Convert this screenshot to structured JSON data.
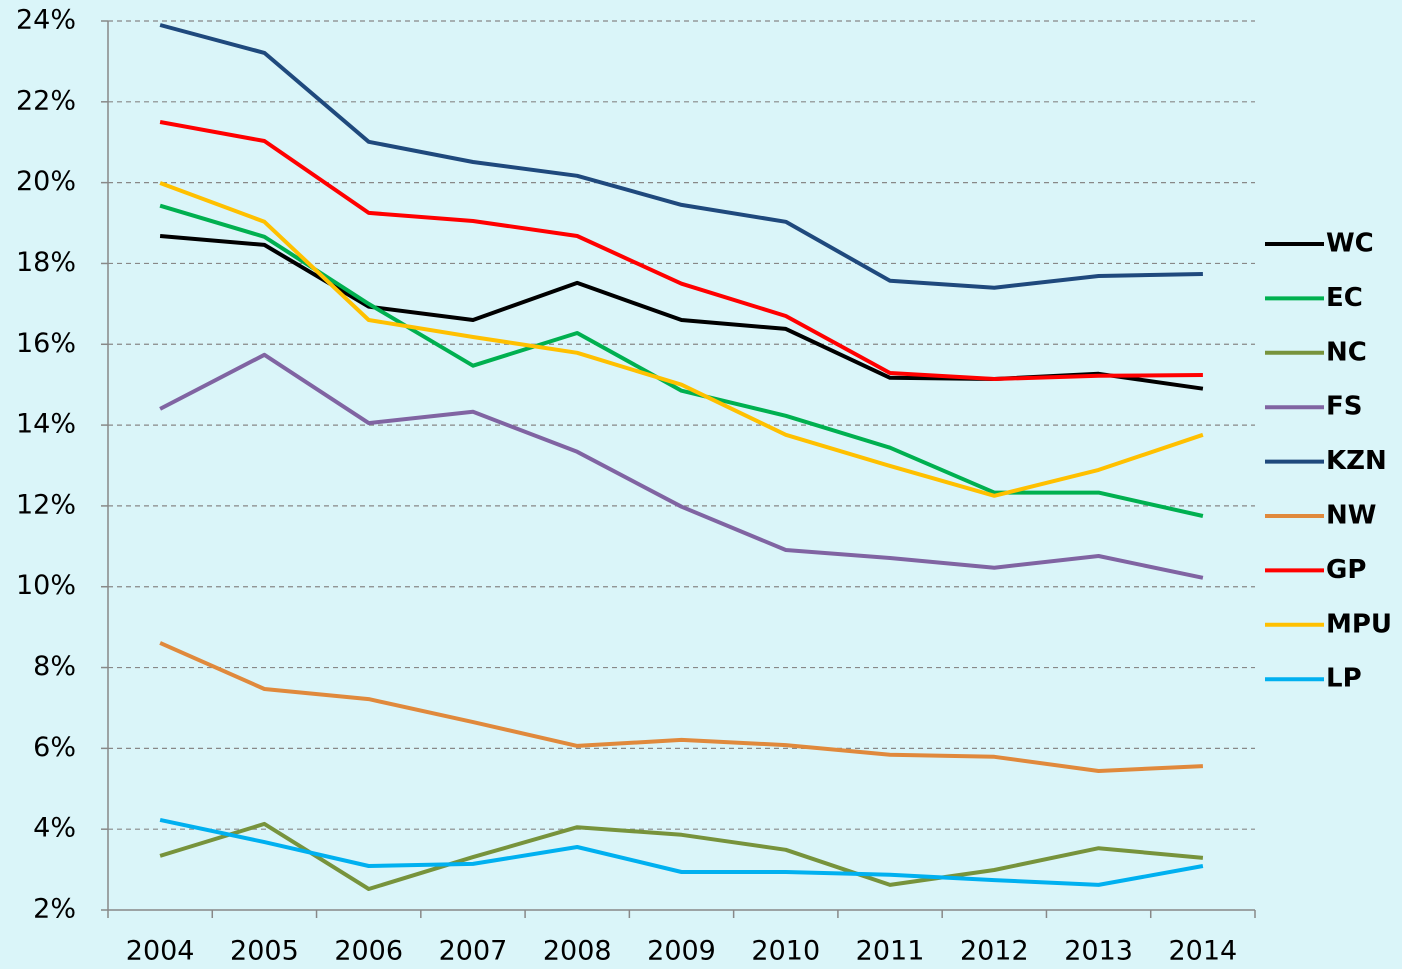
{
  "chart_data": {
    "type": "line",
    "categories": [
      "2004",
      "2005",
      "2006",
      "2007",
      "2008",
      "2009",
      "2010",
      "2011",
      "2012",
      "2013",
      "2014"
    ],
    "series": [
      {
        "name": "WC",
        "color": "#000000",
        "values": [
          18.68,
          18.46,
          16.93,
          16.6,
          17.52,
          16.6,
          16.38,
          15.17,
          15.14,
          15.27,
          14.9
        ]
      },
      {
        "name": "EC",
        "color": "#00b050",
        "values": [
          19.43,
          18.66,
          17.0,
          15.47,
          16.28,
          14.85,
          14.23,
          13.44,
          12.33,
          12.33,
          11.75
        ]
      },
      {
        "name": "NC",
        "color": "#77933c",
        "values": [
          3.34,
          4.13,
          2.52,
          3.31,
          4.05,
          3.86,
          3.49,
          2.62,
          2.99,
          3.53,
          3.29
        ]
      },
      {
        "name": "FS",
        "color": "#8064a2",
        "values": [
          14.4,
          15.74,
          14.05,
          14.33,
          13.34,
          11.98,
          10.91,
          10.71,
          10.47,
          10.76,
          10.22
        ]
      },
      {
        "name": "KZN",
        "color": "#1f497d",
        "values": [
          23.9,
          23.21,
          21.01,
          20.51,
          20.17,
          19.45,
          19.03,
          17.57,
          17.4,
          17.69,
          17.74
        ]
      },
      {
        "name": "NW",
        "color": "#e0893c",
        "values": [
          8.61,
          7.47,
          7.22,
          6.65,
          6.06,
          6.21,
          6.08,
          5.84,
          5.79,
          5.44,
          5.56
        ]
      },
      {
        "name": "GP",
        "color": "#ff0000",
        "values": [
          21.5,
          21.03,
          19.25,
          19.05,
          18.68,
          17.5,
          16.7,
          15.29,
          15.14,
          15.22,
          15.24
        ]
      },
      {
        "name": "MPU",
        "color": "#ffc000",
        "values": [
          19.99,
          19.03,
          16.6,
          16.18,
          15.79,
          15.0,
          13.76,
          12.99,
          12.25,
          12.89,
          13.76
        ]
      },
      {
        "name": "LP",
        "color": "#00b0f0",
        "values": [
          4.23,
          3.68,
          3.09,
          3.14,
          3.56,
          2.94,
          2.94,
          2.87,
          2.74,
          2.62,
          3.09
        ]
      }
    ],
    "ylim": [
      2,
      24
    ],
    "yticks": [
      {
        "value": 2,
        "label": "2%"
      },
      {
        "value": 4,
        "label": "4%"
      },
      {
        "value": 6,
        "label": "6%"
      },
      {
        "value": 8,
        "label": "8%"
      },
      {
        "value": 10,
        "label": "10%"
      },
      {
        "value": 12,
        "label": "12%"
      },
      {
        "value": 14,
        "label": "14%"
      },
      {
        "value": 16,
        "label": "16%"
      },
      {
        "value": 18,
        "label": "18%"
      },
      {
        "value": 20,
        "label": "20%"
      },
      {
        "value": 22,
        "label": "22%"
      },
      {
        "value": 24,
        "label": "24%"
      }
    ],
    "grid": true,
    "legend": "right"
  }
}
